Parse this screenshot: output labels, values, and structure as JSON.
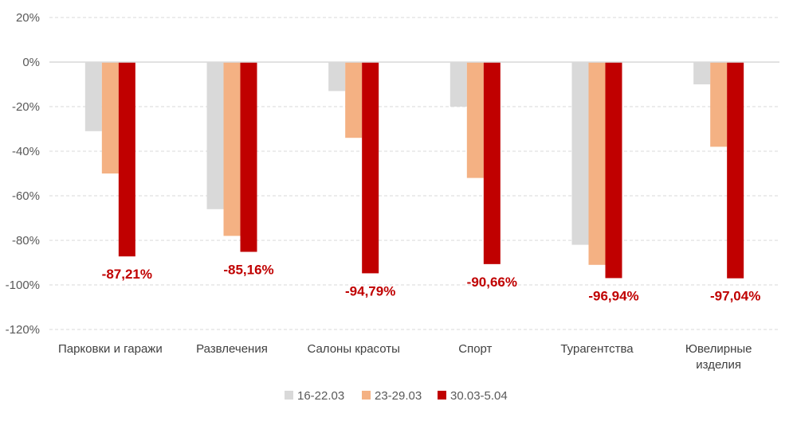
{
  "chart_data": {
    "type": "bar",
    "categories": [
      [
        "Парковки и гаражи"
      ],
      [
        "Развлечения"
      ],
      [
        "Салоны красоты"
      ],
      [
        "Спорт"
      ],
      [
        "Турагентства"
      ],
      [
        "Ювелирные",
        "изделия"
      ]
    ],
    "series": [
      {
        "name": "16-22.03",
        "color": "#d9d9d9",
        "values": [
          -31,
          -66,
          -13,
          -20,
          -82,
          -10
        ]
      },
      {
        "name": "23-29.03",
        "color": "#f4b183",
        "values": [
          -50,
          -78,
          -34,
          -52,
          -91,
          -38
        ]
      },
      {
        "name": "30.03-5.04",
        "color": "#c00000",
        "values": [
          -87.21,
          -85.16,
          -94.79,
          -90.66,
          -96.94,
          -97.04
        ]
      }
    ],
    "data_labels": [
      "-87,21%",
      "-85,16%",
      "-94,79%",
      "-90,66%",
      "-96,94%",
      "-97,04%"
    ],
    "label_color": "#c00000",
    "yticks": [
      20,
      0,
      -20,
      -40,
      -60,
      -80,
      -100,
      -120
    ],
    "ytick_labels": [
      "20%",
      "0%",
      "-20%",
      "-40%",
      "-60%",
      "-80%",
      "-100%",
      "-120%"
    ],
    "ylim": [
      -120,
      20
    ],
    "grid": true,
    "legend_position": "bottom",
    "title": "",
    "xlabel": "",
    "ylabel": ""
  }
}
